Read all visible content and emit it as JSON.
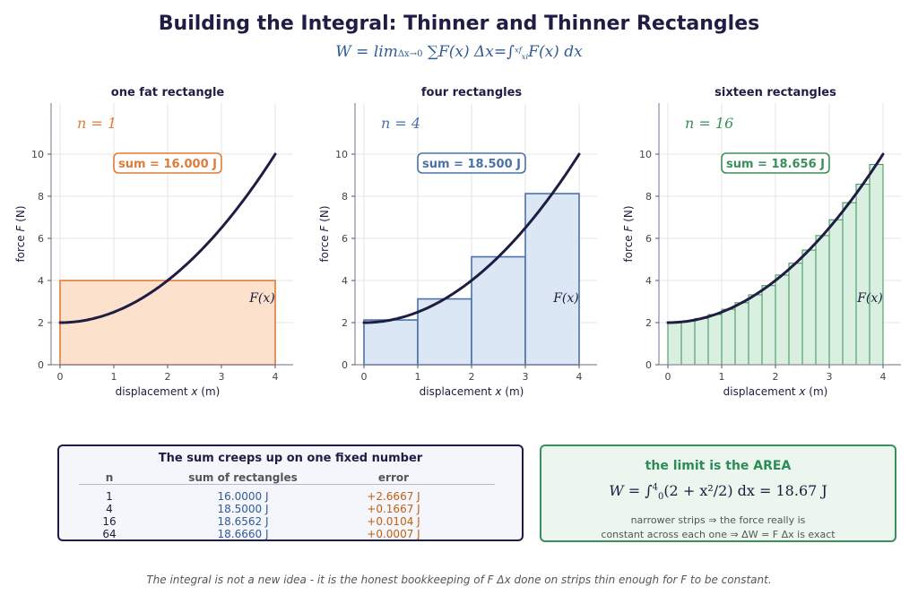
{
  "title": "Building the Integral: Thinner and Thinner Rectangles",
  "formula": {
    "lhs": "W = lim",
    "lim_sub": "Δx→0",
    "middle": " ∑F(x) Δx=∫",
    "upper": "x",
    "upper_sub": "f",
    "lower": "x",
    "lower_sub": "i",
    "rhs": "F(x) dx"
  },
  "chart_data": [
    {
      "type": "bar",
      "title": "one fat rectangle",
      "n_label": "n = 1",
      "n": 1,
      "sum_label": "sum = 16.000 J",
      "curve_label": "F(x)",
      "xlabel": "displacement x  (m)",
      "ylabel": "force F  (N)",
      "xlim": [
        0,
        4
      ],
      "ylim": [
        0,
        12
      ],
      "xticks": [
        0,
        1,
        2,
        3,
        4
      ],
      "yticks": [
        0,
        2,
        4,
        6,
        8,
        10
      ],
      "bars": [
        {
          "x0": 0,
          "x1": 4,
          "height": 4
        }
      ],
      "color": "#e07b39",
      "fill": "#fce1cc"
    },
    {
      "type": "bar",
      "title": "four rectangles",
      "n_label": "n = 4",
      "n": 4,
      "sum_label": "sum = 18.500 J",
      "curve_label": "F(x)",
      "xlabel": "displacement x  (m)",
      "ylabel": "force F  (N)",
      "xlim": [
        0,
        4
      ],
      "ylim": [
        0,
        12
      ],
      "xticks": [
        0,
        1,
        2,
        3,
        4
      ],
      "yticks": [
        0,
        2,
        4,
        6,
        8,
        10
      ],
      "bars": [
        {
          "x0": 0,
          "x1": 1,
          "height": 2.125
        },
        {
          "x0": 1,
          "x1": 2,
          "height": 3.125
        },
        {
          "x0": 2,
          "x1": 3,
          "height": 5.125
        },
        {
          "x0": 3,
          "x1": 4,
          "height": 8.125
        }
      ],
      "color": "#4a72a8",
      "fill": "#dce7f6"
    },
    {
      "type": "bar",
      "title": "sixteen rectangles",
      "n_label": "n = 16",
      "n": 16,
      "sum_label": "sum = 18.656 J",
      "curve_label": "F(x)",
      "xlabel": "displacement x  (m)",
      "ylabel": "force F  (N)",
      "xlim": [
        0,
        4
      ],
      "ylim": [
        0,
        12
      ],
      "xticks": [
        0,
        1,
        2,
        3,
        4
      ],
      "yticks": [
        0,
        2,
        4,
        6,
        8,
        10
      ],
      "bars_rule": "midpoint",
      "curve": {
        "equation": "2 + x^2/2",
        "range": [
          0,
          4
        ]
      },
      "color": "#3a8f5a",
      "fill": "#d9efdf"
    }
  ],
  "table": {
    "title": "The sum creeps up on one fixed number",
    "headers": [
      "n",
      "sum of rectangles",
      "error"
    ],
    "rows": [
      {
        "n": "1",
        "sum": "16.0000 J",
        "error": "+2.6667 J"
      },
      {
        "n": "4",
        "sum": "18.5000 J",
        "error": "+0.1667 J"
      },
      {
        "n": "16",
        "sum": "18.6562 J",
        "error": "+0.0104 J"
      },
      {
        "n": "64",
        "sum": "18.6660 J",
        "error": "+0.0007 J"
      }
    ]
  },
  "limit": {
    "title": "the limit is the AREA",
    "equation_left": "W = ∫",
    "upper": "4",
    "lower": "0",
    "equation_body": "(2 + x²/2) dx = 18.67 J",
    "note1": "narrower strips  ⇒  the force really is",
    "note2": "constant across each one  ⇒  ΔW = F Δx is exact"
  },
  "footer": "The integral is not a new idea - it is the honest bookkeeping of F Δx done on strips thin enough for F to be constant.",
  "colors": {
    "curve": "#1f1d44",
    "grid": "#e6e6e6",
    "axis": "#8a8aa0"
  }
}
